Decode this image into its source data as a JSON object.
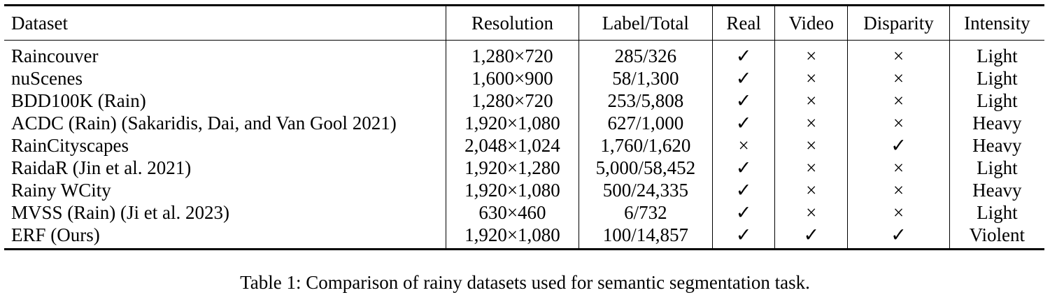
{
  "table": {
    "headers": [
      "Dataset",
      "Resolution",
      "Label/Total",
      "Real",
      "Video",
      "Disparity",
      "Intensity"
    ],
    "rows": [
      [
        "Raincouver",
        "1,280×720",
        "285/326",
        "✓",
        "×",
        "×",
        "Light"
      ],
      [
        "nuScenes",
        "1,600×900",
        "58/1,300",
        "✓",
        "×",
        "×",
        "Light"
      ],
      [
        "BDD100K (Rain)",
        "1,280×720",
        "253/5,808",
        "✓",
        "×",
        "×",
        "Light"
      ],
      [
        "ACDC (Rain) (Sakaridis, Dai, and Van Gool 2021)",
        "1,920×1,080",
        "627/1,000",
        "✓",
        "×",
        "×",
        "Heavy"
      ],
      [
        "RainCityscapes",
        "2,048×1,024",
        "1,760/1,620",
        "×",
        "×",
        "✓",
        "Heavy"
      ],
      [
        "RaidaR (Jin et al. 2021)",
        "1,920×1,280",
        "5,000/58,452",
        "✓",
        "×",
        "×",
        "Light"
      ],
      [
        "Rainy WCity",
        "1,920×1,080",
        "500/24,335",
        "✓",
        "×",
        "×",
        "Heavy"
      ],
      [
        "MVSS (Rain) (Ji et al. 2023)",
        "630×460",
        "6/732",
        "✓",
        "×",
        "×",
        "Light"
      ],
      [
        "ERF (Ours)",
        "1,920×1,080",
        "100/14,857",
        "✓",
        "✓",
        "✓",
        "Violent"
      ]
    ]
  },
  "caption": "Table 1: Comparison of rainy datasets used for semantic segmentation task."
}
